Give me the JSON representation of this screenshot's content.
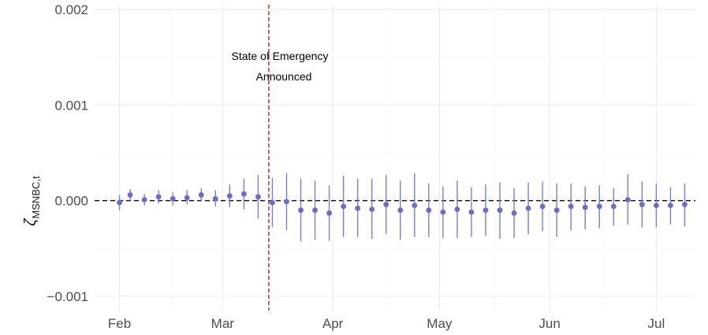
{
  "chart_data": {
    "type": "scatter",
    "ylabel_symbol": "ζ",
    "ylabel_subscript": "MSNBC,t",
    "ylim": [
      -0.00115,
      0.00205
    ],
    "y_ticks": [
      {
        "value": -0.001,
        "label": "−0.001"
      },
      {
        "value": 0.0,
        "label": "0.000"
      },
      {
        "value": 0.001,
        "label": "0.001"
      },
      {
        "value": 0.002,
        "label": "0.002"
      }
    ],
    "xlim": [
      "2020-01-25",
      "2020-07-12"
    ],
    "x_ticks": [
      {
        "date": "2020-02-01",
        "label": "Feb"
      },
      {
        "date": "2020-03-01",
        "label": "Mar"
      },
      {
        "date": "2020-04-01",
        "label": "Apr"
      },
      {
        "date": "2020-05-01",
        "label": "May"
      },
      {
        "date": "2020-06-01",
        "label": "Jun"
      },
      {
        "date": "2020-07-01",
        "label": "Jul"
      }
    ],
    "grid": true,
    "reference_line": {
      "value": 0.0,
      "color": "#000000",
      "style": "dashed"
    },
    "event_line": {
      "date": "2020-03-14",
      "color": "#a52a2a",
      "style": "dashed"
    },
    "annotation": {
      "line1": "State of Emergency",
      "line2": "Announced"
    },
    "point_color": "#6b6bcf",
    "errorbar_color": "#7c7cd9",
    "points": [
      {
        "date": "2020-02-01",
        "y": -2e-05,
        "lo": -0.0001,
        "hi": 6e-05
      },
      {
        "date": "2020-02-04",
        "y": 6e-05,
        "lo": 0.0,
        "hi": 0.00012
      },
      {
        "date": "2020-02-08",
        "y": 1e-05,
        "lo": -5e-05,
        "hi": 7e-05
      },
      {
        "date": "2020-02-12",
        "y": 4e-05,
        "lo": -3e-05,
        "hi": 0.00011
      },
      {
        "date": "2020-02-16",
        "y": 2e-05,
        "lo": -5e-05,
        "hi": 9e-05
      },
      {
        "date": "2020-02-20",
        "y": 3e-05,
        "lo": -4e-05,
        "hi": 0.00011
      },
      {
        "date": "2020-02-24",
        "y": 6e-05,
        "lo": -1e-05,
        "hi": 0.00013
      },
      {
        "date": "2020-02-28",
        "y": 2e-05,
        "lo": -6e-05,
        "hi": 0.00011
      },
      {
        "date": "2020-03-03",
        "y": 5e-05,
        "lo": -7e-05,
        "hi": 0.00017
      },
      {
        "date": "2020-03-07",
        "y": 7e-05,
        "lo": -9e-05,
        "hi": 0.00023
      },
      {
        "date": "2020-03-11",
        "y": 4e-05,
        "lo": -0.00019,
        "hi": 0.00027
      },
      {
        "date": "2020-03-15",
        "y": -2e-05,
        "lo": -0.00028,
        "hi": 0.00024
      },
      {
        "date": "2020-03-19",
        "y": -1e-05,
        "lo": -0.00031,
        "hi": 0.00029
      },
      {
        "date": "2020-03-23",
        "y": -0.0001,
        "lo": -0.00043,
        "hi": 0.00023
      },
      {
        "date": "2020-03-27",
        "y": -0.0001,
        "lo": -0.00041,
        "hi": 0.00021
      },
      {
        "date": "2020-03-31",
        "y": -0.00013,
        "lo": -0.00042,
        "hi": 0.00016
      },
      {
        "date": "2020-04-04",
        "y": -6e-05,
        "lo": -0.00038,
        "hi": 0.00026
      },
      {
        "date": "2020-04-08",
        "y": -8e-05,
        "lo": -0.00038,
        "hi": 0.00023
      },
      {
        "date": "2020-04-12",
        "y": -9e-05,
        "lo": -0.0004,
        "hi": 0.00023
      },
      {
        "date": "2020-04-16",
        "y": -4e-05,
        "lo": -0.00035,
        "hi": 0.00027
      },
      {
        "date": "2020-04-20",
        "y": -0.0001,
        "lo": -0.00041,
        "hi": 0.00021
      },
      {
        "date": "2020-04-24",
        "y": -5e-05,
        "lo": -0.00038,
        "hi": 0.00029
      },
      {
        "date": "2020-04-28",
        "y": -0.0001,
        "lo": -0.00038,
        "hi": 0.00018
      },
      {
        "date": "2020-05-02",
        "y": -0.00012,
        "lo": -0.00039,
        "hi": 0.00015
      },
      {
        "date": "2020-05-06",
        "y": -9e-05,
        "lo": -0.00039,
        "hi": 0.00021
      },
      {
        "date": "2020-05-10",
        "y": -0.00012,
        "lo": -0.00038,
        "hi": 0.00014
      },
      {
        "date": "2020-05-14",
        "y": -0.0001,
        "lo": -0.00037,
        "hi": 0.00017
      },
      {
        "date": "2020-05-18",
        "y": -0.0001,
        "lo": -0.0004,
        "hi": 0.00019
      },
      {
        "date": "2020-05-22",
        "y": -0.00013,
        "lo": -0.00039,
        "hi": 0.00013
      },
      {
        "date": "2020-05-26",
        "y": -8e-05,
        "lo": -0.00035,
        "hi": 0.00019
      },
      {
        "date": "2020-05-30",
        "y": -6e-05,
        "lo": -0.00032,
        "hi": 0.0002
      },
      {
        "date": "2020-06-03",
        "y": -0.0001,
        "lo": -0.00038,
        "hi": 0.00018
      },
      {
        "date": "2020-06-07",
        "y": -6e-05,
        "lo": -0.00031,
        "hi": 0.00018
      },
      {
        "date": "2020-06-11",
        "y": -7e-05,
        "lo": -0.0003,
        "hi": 0.00015
      },
      {
        "date": "2020-06-15",
        "y": -6e-05,
        "lo": -0.00029,
        "hi": 0.00016
      },
      {
        "date": "2020-06-19",
        "y": -6e-05,
        "lo": -0.00026,
        "hi": 0.00013
      },
      {
        "date": "2020-06-23",
        "y": 1e-05,
        "lo": -0.00025,
        "hi": 0.00028
      },
      {
        "date": "2020-06-27",
        "y": -4e-05,
        "lo": -0.00028,
        "hi": 0.0002
      },
      {
        "date": "2020-07-01",
        "y": -5e-05,
        "lo": -0.00028,
        "hi": 0.00018
      },
      {
        "date": "2020-07-05",
        "y": -5e-05,
        "lo": -0.00025,
        "hi": 0.00014
      },
      {
        "date": "2020-07-09",
        "y": -4e-05,
        "lo": -0.00027,
        "hi": 0.00018
      }
    ]
  }
}
